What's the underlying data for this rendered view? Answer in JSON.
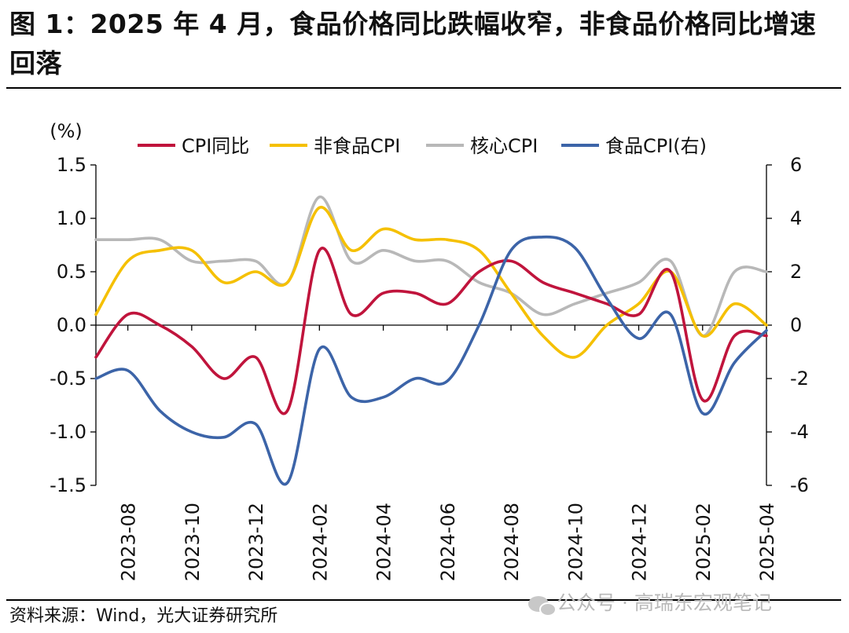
{
  "title": "图 1：2025 年 4 月，食品价格同比跌幅收窄，非食品价格同比增速回落",
  "source": "资料来源：Wind，光大证券研究所",
  "watermark": "公众号 · 高瑞东宏观笔记",
  "colors": {
    "cpi": "#c0143c",
    "nonfood": "#f5c000",
    "core": "#b8b8b8",
    "food": "#3c64a8"
  },
  "chart_data": {
    "type": "line",
    "y_unit_label": "(%)",
    "x": [
      "2023-07",
      "2023-08",
      "2023-09",
      "2023-10",
      "2023-11",
      "2023-12",
      "2024-01",
      "2024-02",
      "2024-03",
      "2024-04",
      "2024-05",
      "2024-06",
      "2024-07",
      "2024-08",
      "2024-09",
      "2024-10",
      "2024-11",
      "2024-12",
      "2025-01",
      "2025-02",
      "2025-03",
      "2025-04"
    ],
    "x_tick_labels": [
      "2023-08",
      "2023-10",
      "2023-12",
      "2024-02",
      "2024-04",
      "2024-06",
      "2024-08",
      "2024-10",
      "2024-12",
      "2025-02",
      "2025-04"
    ],
    "ylim_left": [
      -1.5,
      1.5
    ],
    "yticks_left": [
      "1.5",
      "1.0",
      "0.5",
      "0.0",
      "-0.5",
      "-1.0",
      "-1.5"
    ],
    "ylim_right": [
      -6,
      6
    ],
    "yticks_right": [
      "6",
      "4",
      "2",
      "0",
      "-2",
      "-4",
      "-6"
    ],
    "series": [
      {
        "name": "CPI同比",
        "axis": "left",
        "color_key": "cpi",
        "values": [
          -0.3,
          0.1,
          0.0,
          -0.2,
          -0.5,
          -0.3,
          -0.8,
          0.7,
          0.1,
          0.3,
          0.3,
          0.2,
          0.5,
          0.6,
          0.4,
          0.3,
          0.2,
          0.1,
          0.5,
          -0.7,
          -0.1,
          -0.1
        ]
      },
      {
        "name": "非食品CPI",
        "axis": "left",
        "color_key": "nonfood",
        "values": [
          0.1,
          0.6,
          0.7,
          0.7,
          0.4,
          0.5,
          0.4,
          1.1,
          0.7,
          0.9,
          0.8,
          0.8,
          0.7,
          0.3,
          -0.1,
          -0.3,
          0.0,
          0.2,
          0.5,
          -0.1,
          0.2,
          0.0
        ]
      },
      {
        "name": "核心CPI",
        "axis": "left",
        "color_key": "core",
        "values": [
          0.8,
          0.8,
          0.8,
          0.6,
          0.6,
          0.6,
          0.4,
          1.2,
          0.6,
          0.7,
          0.6,
          0.6,
          0.4,
          0.3,
          0.1,
          0.2,
          0.3,
          0.4,
          0.6,
          -0.1,
          0.5,
          0.5
        ]
      },
      {
        "name": "食品CPI(右)",
        "axis": "right",
        "color_key": "food",
        "values": [
          -2.0,
          -1.7,
          -3.2,
          -4.0,
          -4.2,
          -3.7,
          -5.9,
          -0.9,
          -2.7,
          -2.7,
          -2.0,
          -2.1,
          0.0,
          2.8,
          3.3,
          2.9,
          1.0,
          -0.5,
          0.4,
          -3.3,
          -1.4,
          -0.2
        ]
      }
    ]
  }
}
